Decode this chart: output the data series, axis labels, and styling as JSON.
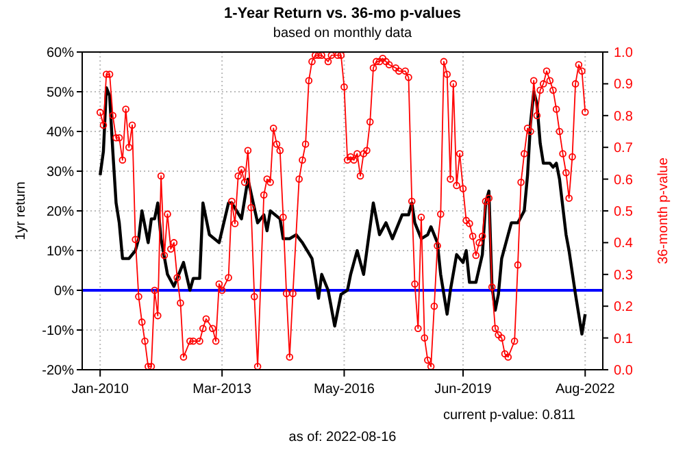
{
  "chart_data": {
    "type": "line",
    "title": "1-Year Return vs. 36-mo p-values",
    "subtitle": "based on monthly data",
    "ylabel": "1yr return",
    "y2label": "36-month p-value",
    "xlim": [
      "2009-07-15",
      "2023-01-15"
    ],
    "xticks": [
      {
        "value": "2010-01",
        "label": "Jan-2010"
      },
      {
        "value": "2013-03",
        "label": "Mar-2013"
      },
      {
        "value": "2016-05",
        "label": "May-2016"
      },
      {
        "value": "2019-06",
        "label": "Jun-2019"
      },
      {
        "value": "2022-08",
        "label": "Aug-2022"
      }
    ],
    "ylim": [
      -20,
      60
    ],
    "yticks": [
      {
        "value": -20,
        "label": "-20%"
      },
      {
        "value": -10,
        "label": "-10%"
      },
      {
        "value": 0,
        "label": "0%"
      },
      {
        "value": 10,
        "label": "10%"
      },
      {
        "value": 20,
        "label": "20%"
      },
      {
        "value": 30,
        "label": "30%"
      },
      {
        "value": 40,
        "label": "40%"
      },
      {
        "value": 50,
        "label": "50%"
      },
      {
        "value": 60,
        "label": "60%"
      }
    ],
    "y2lim": [
      0,
      1
    ],
    "y2ticks": [
      {
        "value": 0,
        "label": "0.0"
      },
      0.1,
      0.2,
      0.3,
      0.4,
      0.5,
      0.6,
      0.7,
      0.8,
      0.9,
      {
        "value": 1,
        "label": "1.0"
      }
    ],
    "grid": true,
    "ref_lines": [
      {
        "axis": "y",
        "value": 0,
        "color": "#0000ff"
      }
    ],
    "annotations": [
      "current p-value:   0.811",
      "as of:  2022-08-16"
    ],
    "series": [
      {
        "color": "#000000",
        "marker": "none",
        "x": [
          "2010-01",
          "2010-02",
          "2010-03",
          "2010-04",
          "2010-05",
          "2010-06",
          "2010-07",
          "2010-08",
          "2010-10",
          "2010-12",
          "2011-01",
          "2011-02",
          "2011-04",
          "2011-05",
          "2011-06",
          "2011-07",
          "2011-08",
          "2011-10",
          "2011-12",
          "2012-03",
          "2012-05",
          "2012-06",
          "2012-08",
          "2012-09",
          "2012-11",
          "2013-02",
          "2013-05",
          "2013-06",
          "2013-09",
          "2013-11",
          "2014-02",
          "2014-04",
          "2014-05",
          "2014-06",
          "2014-09",
          "2014-10",
          "2014-12",
          "2015-02",
          "2015-04",
          "2015-07",
          "2015-09",
          "2015-10",
          "2015-12",
          "2016-02",
          "2016-04",
          "2016-06",
          "2016-07",
          "2016-09",
          "2016-11",
          "2017-02",
          "2017-04",
          "2017-06",
          "2017-08",
          "2017-11",
          "2018-01",
          "2018-02",
          "2018-03",
          "2018-05",
          "2018-07",
          "2018-08",
          "2018-10",
          "2018-11",
          "2019-01",
          "2019-02",
          "2019-04",
          "2019-06",
          "2019-07",
          "2019-08",
          "2019-10",
          "2019-12",
          "2020-01",
          "2020-02",
          "2020-03",
          "2020-04",
          "2020-05",
          "2020-06",
          "2020-08",
          "2020-09",
          "2020-11",
          "2021-01",
          "2021-02",
          "2021-03",
          "2021-04",
          "2021-05",
          "2021-06",
          "2021-07",
          "2021-09",
          "2021-10",
          "2021-11",
          "2021-12",
          "2022-02",
          "2022-03",
          "2022-05",
          "2022-07",
          "2022-08"
        ],
        "values": [
          29,
          35,
          51,
          49,
          35,
          22,
          17,
          8,
          8,
          10,
          13,
          20,
          12,
          18,
          18,
          22,
          13,
          4,
          1,
          7,
          0,
          3,
          3,
          22,
          14,
          12,
          22,
          22,
          18,
          28,
          17,
          19,
          15,
          20,
          18,
          13,
          13,
          14,
          12,
          8,
          -2,
          4,
          0,
          -9,
          -1,
          0,
          4,
          10,
          4,
          22,
          14,
          17,
          13,
          19,
          19,
          22,
          17,
          13,
          14,
          16,
          12,
          4,
          -6,
          0,
          9,
          7,
          10,
          2,
          2,
          9,
          22,
          25,
          1,
          -5,
          -1,
          8,
          14,
          17,
          17,
          20,
          29,
          42,
          50,
          47,
          37,
          32,
          32,
          31,
          32,
          28,
          14,
          10,
          -1,
          -11,
          -6
        ]
      },
      {
        "color": "#ff0000",
        "axis": "y2",
        "marker": "circle",
        "x": [
          "2010-01",
          "2010-02",
          "2010-03",
          "2010-04",
          "2010-05",
          "2010-06",
          "2010-07",
          "2010-08",
          "2010-09",
          "2010-10",
          "2010-11",
          "2010-12",
          "2011-01",
          "2011-02",
          "2011-03",
          "2011-04",
          "2011-05",
          "2011-06",
          "2011-07",
          "2011-08",
          "2011-09",
          "2011-10",
          "2011-11",
          "2011-12",
          "2012-01",
          "2012-02",
          "2012-03",
          "2012-05",
          "2012-06",
          "2012-08",
          "2012-09",
          "2012-10",
          "2012-12",
          "2013-01",
          "2013-02",
          "2013-03",
          "2013-05",
          "2013-06",
          "2013-07",
          "2013-08",
          "2013-09",
          "2013-10",
          "2013-11",
          "2013-12",
          "2014-01",
          "2014-02",
          "2014-04",
          "2014-05",
          "2014-06",
          "2014-07",
          "2014-08",
          "2014-09",
          "2014-10",
          "2014-11",
          "2014-12",
          "2015-01",
          "2015-03",
          "2015-04",
          "2015-05",
          "2015-06",
          "2015-07",
          "2015-08",
          "2015-09",
          "2015-10",
          "2015-12",
          "2016-01",
          "2016-03",
          "2016-04",
          "2016-05",
          "2016-06",
          "2016-07",
          "2016-08",
          "2016-09",
          "2016-10",
          "2016-11",
          "2016-12",
          "2017-01",
          "2017-02",
          "2017-03",
          "2017-04",
          "2017-05",
          "2017-06",
          "2017-07",
          "2017-09",
          "2017-10",
          "2017-12",
          "2018-01",
          "2018-02",
          "2018-03",
          "2018-04",
          "2018-05",
          "2018-06",
          "2018-07",
          "2018-08",
          "2018-09",
          "2018-10",
          "2018-11",
          "2018-12",
          "2019-01",
          "2019-02",
          "2019-03",
          "2019-04",
          "2019-05",
          "2019-06",
          "2019-07",
          "2019-08",
          "2019-09",
          "2019-10",
          "2019-11",
          "2019-12",
          "2020-01",
          "2020-02",
          "2020-03",
          "2020-04",
          "2020-05",
          "2020-06",
          "2020-07",
          "2020-08",
          "2020-10",
          "2020-11",
          "2020-12",
          "2021-01",
          "2021-02",
          "2021-03",
          "2021-04",
          "2021-05",
          "2021-06",
          "2021-07",
          "2021-08",
          "2021-09",
          "2021-10",
          "2021-11",
          "2021-12",
          "2022-01",
          "2022-02",
          "2022-03",
          "2022-04",
          "2022-05",
          "2022-06",
          "2022-07",
          "2022-08"
        ],
        "values": [
          0.81,
          0.77,
          0.93,
          0.93,
          0.8,
          0.73,
          0.73,
          0.66,
          0.82,
          0.7,
          0.77,
          0.41,
          0.23,
          0.15,
          0.09,
          0.01,
          0.01,
          0.25,
          0.17,
          0.61,
          0.36,
          0.49,
          0.38,
          0.4,
          0.29,
          0.21,
          0.04,
          0.09,
          0.09,
          0.09,
          0.13,
          0.16,
          0.13,
          0.09,
          0.27,
          0.25,
          0.29,
          0.53,
          0.46,
          0.61,
          0.63,
          0.59,
          0.69,
          0.51,
          0.23,
          0.01,
          0.55,
          0.6,
          0.59,
          0.76,
          0.71,
          0.69,
          0.48,
          0.24,
          0.04,
          0.24,
          0.6,
          0.66,
          0.71,
          0.91,
          0.97,
          0.99,
          0.99,
          0.99,
          0.97,
          0.99,
          0.99,
          0.99,
          0.89,
          0.66,
          0.67,
          0.66,
          0.68,
          0.61,
          0.68,
          0.69,
          0.78,
          0.95,
          0.97,
          0.97,
          0.98,
          0.97,
          0.96,
          0.95,
          0.94,
          0.94,
          0.92,
          0.53,
          0.27,
          0.13,
          0.48,
          0.1,
          0.03,
          0.01,
          0.2,
          0.39,
          0.49,
          0.97,
          0.93,
          0.6,
          0.9,
          0.58,
          0.68,
          0.57,
          0.47,
          0.46,
          0.42,
          0.36,
          0.4,
          0.42,
          0.53,
          0.54,
          0.26,
          0.13,
          0.11,
          0.1,
          0.05,
          0.04,
          0.09,
          0.33,
          0.59,
          0.68,
          0.76,
          0.75,
          0.91,
          0.8,
          0.88,
          0.9,
          0.94,
          0.91,
          0.88,
          0.82,
          0.75,
          0.68,
          0.62,
          0.54,
          0.67,
          0.9,
          0.96,
          0.94,
          0.811
        ]
      }
    ]
  }
}
